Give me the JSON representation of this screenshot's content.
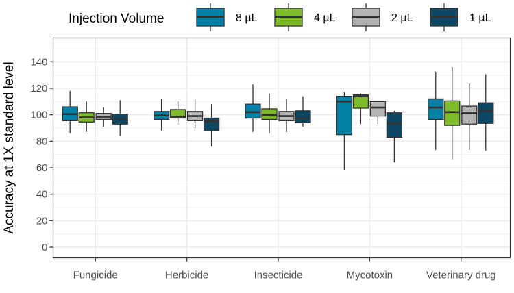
{
  "chart_data": {
    "type": "boxplot",
    "title": "",
    "xlabel": "",
    "ylabel": "Accuracy at 1X standard level",
    "ylim": [
      -8,
      158
    ],
    "yticks": [
      0,
      20,
      40,
      60,
      80,
      100,
      120,
      140
    ],
    "grid": true,
    "legend": {
      "title": "Injection Volume",
      "placement": "top",
      "entries": [
        "8 µL",
        "4 µL",
        "2 µL",
        "1 µL"
      ]
    },
    "categories": [
      "Fungicide",
      "Herbicide",
      "Insecticide",
      "Mycotoxin",
      "Veterinary drug"
    ],
    "series": [
      {
        "name": "8 µL",
        "color": "#0081a7",
        "median_color": "#333333",
        "boxes": [
          {
            "min": 86,
            "q1": 95.5,
            "median": 100.5,
            "q3": 106,
            "max": 118
          },
          {
            "min": 88,
            "q1": 96.5,
            "median": 99.5,
            "q3": 102.5,
            "max": 112
          },
          {
            "min": 87,
            "q1": 97.5,
            "median": 102,
            "q3": 108,
            "max": 123
          },
          {
            "min": 58.5,
            "q1": 85,
            "median": 110,
            "q3": 114,
            "max": 117
          },
          {
            "min": 73.5,
            "q1": 96.5,
            "median": 105.5,
            "q3": 112,
            "max": 132.5
          }
        ]
      },
      {
        "name": "4 µL",
        "color": "#7dbb2a",
        "median_color": "#333333",
        "boxes": [
          {
            "min": 87,
            "q1": 94.5,
            "median": 98,
            "q3": 101.5,
            "max": 110
          },
          {
            "min": 92.5,
            "q1": 97.5,
            "median": 98.5,
            "q3": 104,
            "max": 110
          },
          {
            "min": 86,
            "q1": 96.5,
            "median": 100,
            "q3": 104.5,
            "max": 116
          },
          {
            "min": 93,
            "q1": 105,
            "median": 114,
            "q3": 115,
            "max": 116
          },
          {
            "min": 66.5,
            "q1": 92,
            "median": 102,
            "q3": 110.5,
            "max": 136
          }
        ]
      },
      {
        "name": "2 µL",
        "color": "#b3b3b3",
        "median_color": "#333333",
        "boxes": [
          {
            "min": 91,
            "q1": 96.5,
            "median": 98.5,
            "q3": 101,
            "max": 105.5
          },
          {
            "min": 90,
            "q1": 95.5,
            "median": 99,
            "q3": 102.5,
            "max": 112
          },
          {
            "min": 87,
            "q1": 95.5,
            "median": 99,
            "q3": 102.5,
            "max": 112
          },
          {
            "min": 93,
            "q1": 99,
            "median": 105.5,
            "q3": 110,
            "max": 110
          },
          {
            "min": 73.5,
            "q1": 93,
            "median": 101.5,
            "q3": 106.5,
            "max": 124
          }
        ]
      },
      {
        "name": "1 µL",
        "color": "#0d4763",
        "median_color": "#333333",
        "boxes": [
          {
            "min": 84,
            "q1": 93,
            "median": 96.5,
            "q3": 100.5,
            "max": 111
          },
          {
            "min": 76,
            "q1": 88,
            "median": 95,
            "q3": 97.5,
            "max": 108
          },
          {
            "min": 91,
            "q1": 94,
            "median": 97.5,
            "q3": 103,
            "max": 114
          },
          {
            "min": 64,
            "q1": 83,
            "median": 93.5,
            "q3": 101.5,
            "max": 103
          },
          {
            "min": 73,
            "q1": 93.5,
            "median": 103,
            "q3": 109,
            "max": 130.5
          }
        ]
      }
    ]
  }
}
